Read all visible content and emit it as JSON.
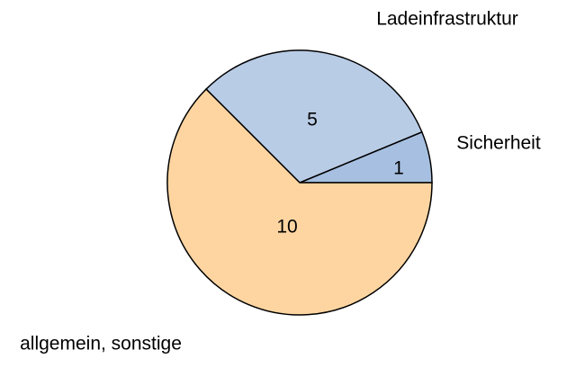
{
  "chart_data": {
    "type": "pie",
    "categories": [
      "Sicherheit",
      "Ladeinfrastruktur",
      "allgemein, sonstige"
    ],
    "values": [
      1,
      5,
      10
    ],
    "colors": [
      "#a7c0e1",
      "#b9cce6",
      "#fed5a1"
    ]
  }
}
